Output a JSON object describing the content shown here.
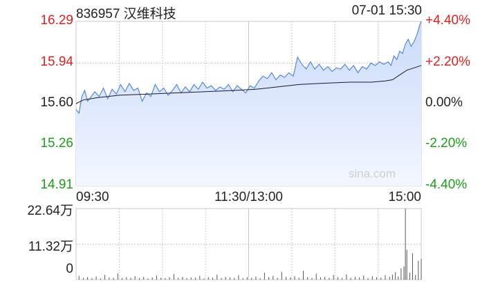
{
  "header": {
    "stock": "836957 汉维科技",
    "datetime": "07-01 15:30"
  },
  "watermark": "sina.com",
  "colors": {
    "up": "#e02020",
    "down": "#1a9e1a",
    "flat": "#222222",
    "price_line": "#4a7fe0",
    "avg_line": "#1a1a1a",
    "area_top": "#c9dafa",
    "area_bottom": "#f3f7ff",
    "grid": "#c8c8c8",
    "volume_bar": "#555555"
  },
  "chart_data": [
    {
      "type": "line",
      "title": "",
      "prev_close": 15.6,
      "ylim": [
        14.91,
        16.29
      ],
      "y_ticks": [
        {
          "value": 16.29,
          "label": "16.29",
          "pct": "+4.40%"
        },
        {
          "value": 15.94,
          "label": "15.94",
          "pct": "+2.20%"
        },
        {
          "value": 15.6,
          "label": "15.60",
          "pct": "0.00%"
        },
        {
          "value": 15.26,
          "label": "15.26",
          "pct": "-2.20%"
        },
        {
          "value": 14.91,
          "label": "14.91",
          "pct": "-4.40%"
        }
      ],
      "x_ticks": [
        {
          "minute": 0,
          "label": "09:30"
        },
        {
          "minute": 120,
          "label": "11:30/13:00"
        },
        {
          "minute": 240,
          "label": "15:00"
        }
      ],
      "session_minutes": 240,
      "series": [
        {
          "role": "price",
          "x": [
            0,
            2,
            4,
            6,
            8,
            10,
            13,
            16,
            19,
            22,
            25,
            28,
            31,
            34,
            37,
            40,
            43,
            46,
            49,
            52,
            55,
            58,
            61,
            64,
            67,
            70,
            73,
            76,
            79,
            82,
            85,
            88,
            91,
            94,
            97,
            100,
            103,
            106,
            109,
            112,
            115,
            118,
            121,
            124,
            127,
            130,
            133,
            136,
            139,
            142,
            145,
            148,
            151,
            154,
            157,
            160,
            163,
            166,
            169,
            172,
            175,
            178,
            181,
            184,
            187,
            190,
            193,
            196,
            199,
            202,
            205,
            208,
            211,
            214,
            217,
            219,
            221,
            223,
            225,
            227,
            229,
            231,
            233,
            235,
            237,
            239,
            240
          ],
          "y": [
            15.55,
            15.52,
            15.66,
            15.71,
            15.62,
            15.65,
            15.7,
            15.66,
            15.73,
            15.64,
            15.72,
            15.68,
            15.76,
            15.7,
            15.77,
            15.71,
            15.73,
            15.62,
            15.69,
            15.66,
            15.76,
            15.7,
            15.73,
            15.67,
            15.71,
            15.76,
            15.69,
            15.74,
            15.7,
            15.76,
            15.72,
            15.78,
            15.73,
            15.75,
            15.71,
            15.74,
            15.72,
            15.76,
            15.7,
            15.75,
            15.72,
            15.69,
            15.75,
            15.73,
            15.79,
            15.83,
            15.81,
            15.86,
            15.8,
            15.84,
            15.82,
            15.86,
            15.83,
            15.99,
            15.93,
            15.89,
            15.95,
            15.89,
            15.93,
            15.88,
            15.91,
            15.87,
            15.9,
            15.89,
            15.93,
            15.88,
            15.92,
            15.86,
            15.91,
            15.89,
            15.94,
            15.92,
            15.95,
            15.93,
            15.95,
            15.92,
            16.0,
            15.97,
            16.04,
            16.02,
            16.1,
            16.14,
            16.08,
            16.12,
            16.18,
            16.26,
            16.29
          ]
        },
        {
          "role": "average",
          "x": [
            0,
            5,
            15,
            30,
            50,
            70,
            90,
            110,
            125,
            140,
            155,
            170,
            190,
            205,
            215,
            220,
            225,
            230,
            235,
            240
          ],
          "y": [
            15.6,
            15.63,
            15.65,
            15.67,
            15.68,
            15.69,
            15.7,
            15.71,
            15.72,
            15.74,
            15.76,
            15.77,
            15.78,
            15.78,
            15.79,
            15.8,
            15.84,
            15.88,
            15.9,
            15.92
          ]
        }
      ]
    },
    {
      "type": "bar",
      "title": "",
      "ylim": [
        0,
        22.64
      ],
      "y_unit": "万",
      "y_ticks": [
        {
          "value": 22.64,
          "label": "22.64万"
        },
        {
          "value": 11.32,
          "label": "11.32万"
        },
        {
          "value": 0,
          "label": "0"
        }
      ],
      "x": [
        2,
        5,
        8,
        11,
        14,
        17,
        20,
        23,
        26,
        29,
        32,
        35,
        38,
        41,
        44,
        47,
        50,
        53,
        56,
        59,
        62,
        65,
        68,
        71,
        74,
        77,
        80,
        83,
        86,
        89,
        92,
        95,
        98,
        101,
        104,
        107,
        110,
        113,
        116,
        119,
        122,
        125,
        128,
        131,
        134,
        137,
        140,
        143,
        146,
        149,
        152,
        155,
        158,
        161,
        164,
        167,
        170,
        173,
        176,
        179,
        182,
        185,
        188,
        191,
        194,
        197,
        200,
        203,
        206,
        209,
        212,
        215,
        218,
        220,
        222,
        224,
        226,
        228,
        229,
        230,
        232,
        234,
        236,
        238,
        240
      ],
      "values": [
        1.2,
        0.6,
        0.8,
        0.5,
        1.0,
        0.4,
        1.5,
        0.7,
        0.6,
        2.0,
        0.5,
        0.8,
        0.6,
        1.1,
        0.5,
        0.9,
        0.4,
        0.7,
        1.3,
        0.6,
        0.5,
        0.8,
        1.8,
        0.6,
        0.9,
        0.5,
        0.7,
        0.6,
        1.2,
        0.4,
        0.8,
        0.6,
        1.6,
        0.5,
        0.9,
        0.7,
        0.6,
        1.4,
        0.5,
        0.8,
        0.6,
        1.0,
        0.5,
        2.2,
        0.8,
        1.2,
        0.6,
        2.5,
        0.9,
        0.7,
        1.1,
        0.6,
        2.8,
        0.8,
        0.5,
        1.9,
        0.7,
        0.9,
        0.6,
        1.5,
        0.8,
        0.5,
        1.7,
        0.6,
        0.9,
        0.7,
        1.3,
        0.5,
        1.1,
        0.8,
        0.6,
        1.4,
        0.9,
        1.6,
        2.4,
        1.0,
        3.6,
        4.2,
        22.6,
        9.5,
        2.2,
        8.4,
        1.5,
        6.0,
        6.6
      ]
    }
  ]
}
